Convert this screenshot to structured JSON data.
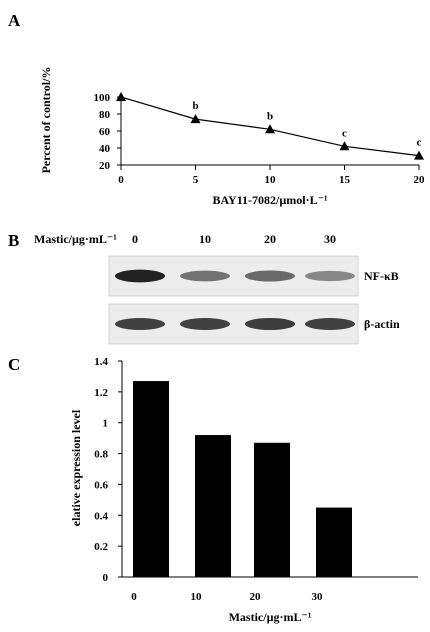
{
  "chart_data": [
    {
      "type": "line",
      "panel": "A",
      "x": [
        0,
        5,
        10,
        15,
        20
      ],
      "y": [
        100,
        74,
        62,
        42,
        31
      ],
      "point_labels": [
        "",
        "b",
        "b",
        "c",
        "c"
      ],
      "xlabel": "BAY11-7082/µmol·L⁻¹",
      "ylabel": "Percent of control/%",
      "xticks": [
        "0",
        "5",
        "10",
        "15",
        "20"
      ],
      "yticks": [
        "20",
        "40",
        "60",
        "80",
        "100"
      ],
      "xlim": [
        0,
        20
      ],
      "ylim": [
        20,
        100
      ],
      "marker": "triangle",
      "grid": false,
      "legend": false
    },
    {
      "type": "bar",
      "panel": "C",
      "categories": [
        "0",
        "10",
        "20",
        "30"
      ],
      "values": [
        1.27,
        0.92,
        0.87,
        0.45
      ],
      "xlabel": "Mastic/µg·mL⁻¹",
      "ylabel": "elative expression level",
      "yticks": [
        "0",
        "0.2",
        "0.4",
        "0.6",
        "0.8",
        "1",
        "1.2",
        "1.4"
      ],
      "ylim": [
        0,
        1.4
      ],
      "bar_color": "#000000",
      "grid": false,
      "legend": false
    }
  ],
  "panel_b": {
    "letter": "B",
    "header_label": "Mastic/µg·mL⁻¹",
    "lanes": [
      "0",
      "10",
      "20",
      "30"
    ],
    "bands": [
      {
        "name": "NF-κB",
        "intensity": [
          0.95,
          0.55,
          0.6,
          0.45
        ]
      },
      {
        "name": "β-actin",
        "intensity": [
          0.8,
          0.8,
          0.82,
          0.8
        ]
      }
    ]
  }
}
